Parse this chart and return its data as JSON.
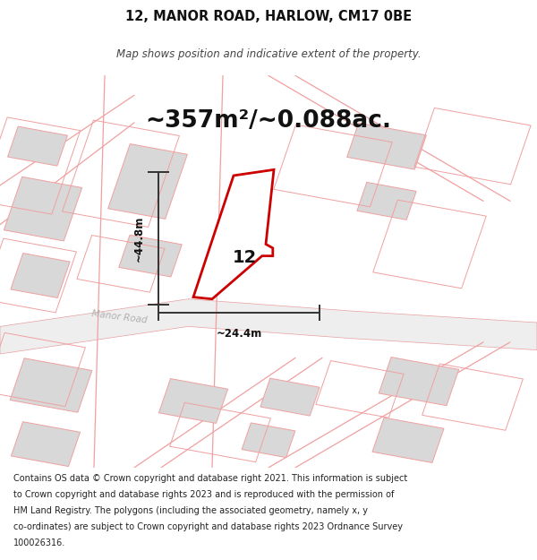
{
  "title": "12, MANOR ROAD, HARLOW, CM17 0BE",
  "subtitle": "Map shows position and indicative extent of the property.",
  "area_text": "~357m²/~0.088ac.",
  "property_number": "12",
  "dim_width": "~24.4m",
  "dim_height": "~44.8m",
  "road_label": "Manor Road",
  "bg_color": "#ffffff",
  "map_bg": "#f7f7f7",
  "building_fill": "#d8d8d8",
  "building_stroke": "#f0a0a0",
  "road_fill": "#eeeeee",
  "road_stroke": "#e8a0a0",
  "highlight_fill": "#ffffff",
  "highlight_stroke": "#cc0000",
  "dim_color": "#333333",
  "footer_lines": [
    "Contains OS data © Crown copyright and database right 2021. This information is subject",
    "to Crown copyright and database rights 2023 and is reproduced with the permission of",
    "HM Land Registry. The polygons (including the associated geometry, namely x, y",
    "co-ordinates) are subject to Crown copyright and database rights 2023 Ordnance Survey",
    "100026316."
  ],
  "footer_fontsize": 7.0,
  "title_fontsize": 10.5,
  "subtitle_fontsize": 8.5,
  "area_fontsize": 19,
  "prop_number_fontsize": 14,
  "dim_fontsize": 8.5,
  "road_label_fontsize": 7.5
}
